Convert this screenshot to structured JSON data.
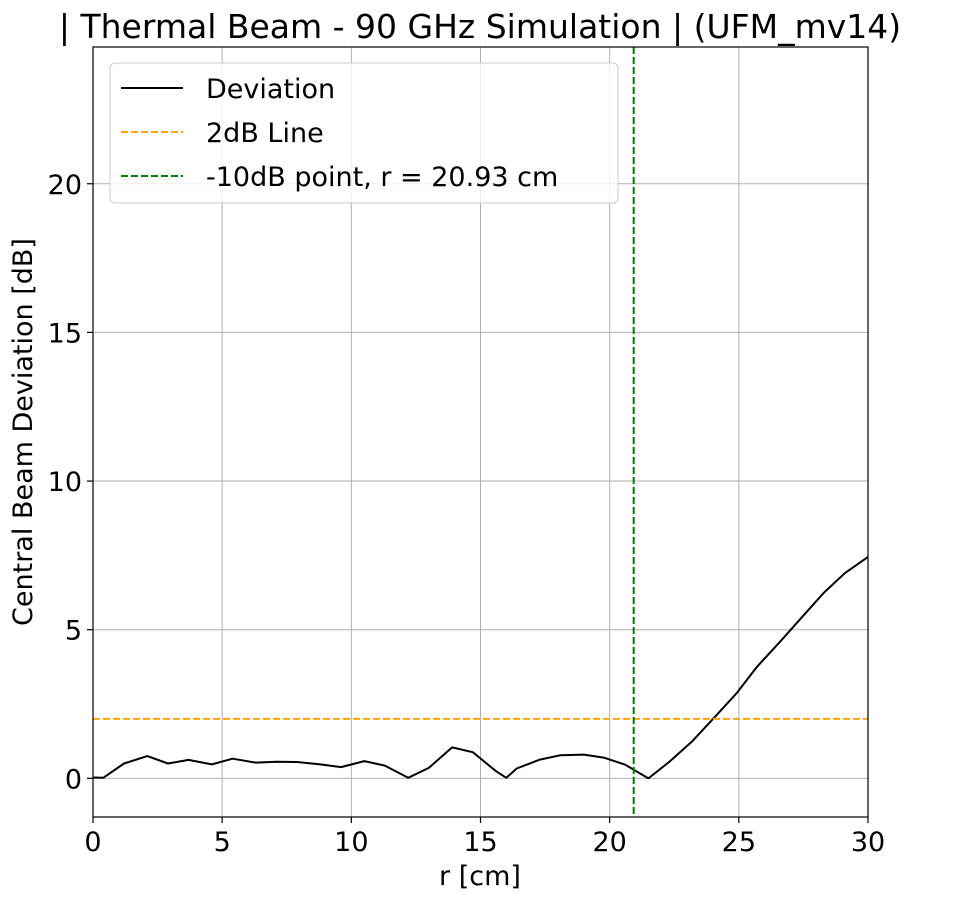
{
  "chart_data": {
    "type": "line",
    "title": "| Thermal Beam - 90 GHz Simulation | (UFM_mv14)",
    "xlabel": "r [cm]",
    "ylabel": "Central Beam Deviation [dB]",
    "xlim": [
      0,
      30
    ],
    "ylim": [
      -1.3,
      24.6
    ],
    "xticks": [
      0,
      5,
      10,
      15,
      20,
      25,
      30
    ],
    "yticks": [
      0,
      5,
      10,
      15,
      20
    ],
    "grid": true,
    "legend_position": "top-left",
    "series": [
      {
        "name": "Deviation",
        "color": "#000000",
        "style": "solid",
        "x": [
          0,
          0.4,
          1.2,
          2.1,
          2.9,
          3.7,
          4.6,
          5.4,
          6.3,
          7.1,
          7.9,
          8.8,
          9.6,
          10.5,
          11.3,
          12.2,
          13.0,
          13.9,
          14.7,
          15.6,
          16.0,
          16.4,
          17.3,
          18.1,
          19.0,
          19.8,
          20.6,
          21.5,
          22.3,
          23.2,
          24.0,
          24.9,
          25.7,
          26.6,
          27.4,
          28.3,
          29.1,
          30.0
        ],
        "y": [
          0.03,
          0.02,
          0.5,
          0.75,
          0.5,
          0.62,
          0.47,
          0.66,
          0.53,
          0.56,
          0.55,
          0.47,
          0.38,
          0.58,
          0.43,
          0.02,
          0.35,
          1.04,
          0.88,
          0.24,
          0.02,
          0.33,
          0.63,
          0.78,
          0.8,
          0.69,
          0.46,
          0.0,
          0.55,
          1.25,
          2.0,
          2.85,
          3.75,
          4.6,
          5.38,
          6.25,
          6.9,
          7.45
        ]
      },
      {
        "name": "2dB Line",
        "color": "#ffa500",
        "style": "dashed",
        "y_constant": 2
      },
      {
        "name": "-10dB point, r = 20.93 cm",
        "color": "#008000",
        "style": "dashed",
        "x_constant": 20.93
      }
    ]
  }
}
